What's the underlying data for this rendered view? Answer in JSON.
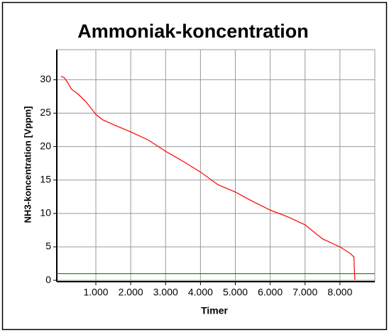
{
  "chart_data": {
    "type": "line",
    "title": "Ammoniak-koncentration",
    "xlabel": "Timer",
    "ylabel": "NH3-koncentration [Vppm]",
    "xlim": [
      -120,
      9000
    ],
    "ylim": [
      -0.2,
      34.5
    ],
    "xticks": [
      {
        "value": 1000,
        "label": "1.000"
      },
      {
        "value": 2000,
        "label": "2.000"
      },
      {
        "value": 3000,
        "label": "3.000"
      },
      {
        "value": 4000,
        "label": "4.000"
      },
      {
        "value": 5000,
        "label": "5.000"
      },
      {
        "value": 6000,
        "label": "6.000"
      },
      {
        "value": 7000,
        "label": "7.000"
      },
      {
        "value": 8000,
        "label": "8.000"
      }
    ],
    "yticks": [
      0,
      5,
      10,
      15,
      20,
      25,
      30
    ],
    "grid": true,
    "series": [
      {
        "color": "#ff0000",
        "x": [
          0,
          100,
          200,
          300,
          500,
          700,
          900,
          1000,
          1200,
          1500,
          2000,
          2500,
          3000,
          3500,
          4000,
          4500,
          5000,
          5500,
          6000,
          6500,
          7000,
          7500,
          8000,
          8300,
          8400,
          8420,
          8430
        ],
        "values": [
          30.5,
          30.3,
          29.5,
          28.6,
          27.8,
          26.8,
          25.5,
          24.8,
          24.0,
          23.3,
          22.2,
          21.0,
          19.3,
          17.8,
          16.2,
          14.3,
          13.2,
          11.8,
          10.5,
          9.5,
          8.3,
          6.2,
          5.0,
          4.0,
          3.5,
          1.0,
          0
        ]
      },
      {
        "color": "#008000",
        "x": [
          -120,
          9000
        ],
        "values": [
          1,
          1
        ]
      }
    ]
  }
}
